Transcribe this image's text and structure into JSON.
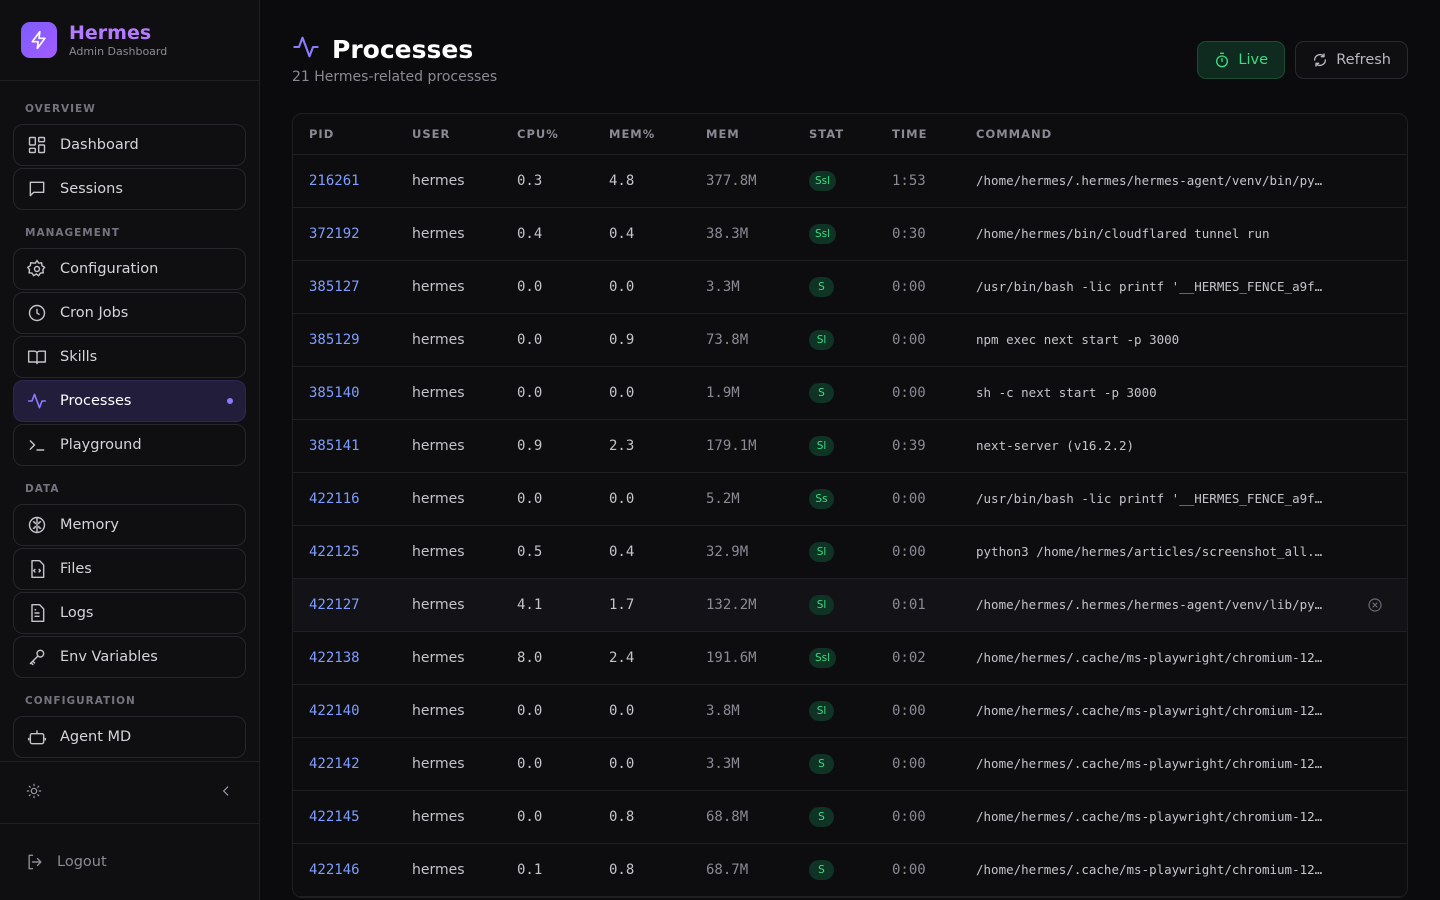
{
  "brand": {
    "name": "Hermes",
    "subtitle": "Admin Dashboard"
  },
  "sidebar": {
    "sections": [
      {
        "label": "OVERVIEW",
        "items": [
          {
            "label": "Dashboard",
            "icon": "grid-icon"
          },
          {
            "label": "Sessions",
            "icon": "chat-icon"
          }
        ]
      },
      {
        "label": "MANAGEMENT",
        "items": [
          {
            "label": "Configuration",
            "icon": "gear-icon"
          },
          {
            "label": "Cron Jobs",
            "icon": "clock-icon"
          },
          {
            "label": "Skills",
            "icon": "book-icon"
          },
          {
            "label": "Processes",
            "icon": "activity-icon",
            "active": true
          },
          {
            "label": "Playground",
            "icon": "terminal-icon"
          }
        ]
      },
      {
        "label": "DATA",
        "items": [
          {
            "label": "Memory",
            "icon": "brain-icon"
          },
          {
            "label": "Files",
            "icon": "file-code-icon"
          },
          {
            "label": "Logs",
            "icon": "file-text-icon"
          },
          {
            "label": "Env Variables",
            "icon": "key-icon"
          }
        ]
      },
      {
        "label": "CONFIGURATION",
        "items": [
          {
            "label": "Agent MD",
            "icon": "bot-icon"
          }
        ]
      }
    ],
    "logout_label": "Logout"
  },
  "header": {
    "title": "Processes",
    "subtitle": "21 Hermes-related processes",
    "live_label": "Live",
    "refresh_label": "Refresh"
  },
  "table": {
    "columns": [
      "PID",
      "USER",
      "CPU%",
      "MEM%",
      "MEM",
      "STAT",
      "TIME",
      "COMMAND"
    ],
    "rows": [
      {
        "pid": "216261",
        "user": "hermes",
        "cpu": "0.3",
        "mem_pct": "4.8",
        "mem": "377.8M",
        "stat": "Ssl",
        "time": "1:53",
        "command": "/home/hermes/.hermes/hermes-agent/venv/bin/pyt…"
      },
      {
        "pid": "372192",
        "user": "hermes",
        "cpu": "0.4",
        "mem_pct": "0.4",
        "mem": "38.3M",
        "stat": "Ssl",
        "time": "0:30",
        "command": "/home/hermes/bin/cloudflared tunnel run"
      },
      {
        "pid": "385127",
        "user": "hermes",
        "cpu": "0.0",
        "mem_pct": "0.0",
        "mem": "3.3M",
        "stat": "S",
        "time": "0:00",
        "command": "/usr/bin/bash -lic printf '__HERMES_FENCE_a9f7…"
      },
      {
        "pid": "385129",
        "user": "hermes",
        "cpu": "0.0",
        "mem_pct": "0.9",
        "mem": "73.8M",
        "stat": "Sl",
        "time": "0:00",
        "command": "npm exec next start -p 3000"
      },
      {
        "pid": "385140",
        "user": "hermes",
        "cpu": "0.0",
        "mem_pct": "0.0",
        "mem": "1.9M",
        "stat": "S",
        "time": "0:00",
        "command": "sh -c next start -p 3000"
      },
      {
        "pid": "385141",
        "user": "hermes",
        "cpu": "0.9",
        "mem_pct": "2.3",
        "mem": "179.1M",
        "stat": "Sl",
        "time": "0:39",
        "command": "next-server (v16.2.2)"
      },
      {
        "pid": "422116",
        "user": "hermes",
        "cpu": "0.0",
        "mem_pct": "0.0",
        "mem": "5.2M",
        "stat": "Ss",
        "time": "0:00",
        "command": "/usr/bin/bash -lic printf '__HERMES_FENCE_a9f7…"
      },
      {
        "pid": "422125",
        "user": "hermes",
        "cpu": "0.5",
        "mem_pct": "0.4",
        "mem": "32.9M",
        "stat": "Sl",
        "time": "0:00",
        "command": "python3 /home/hermes/articles/screenshot_all.py"
      },
      {
        "pid": "422127",
        "user": "hermes",
        "cpu": "4.1",
        "mem_pct": "1.7",
        "mem": "132.2M",
        "stat": "Sl",
        "time": "0:01",
        "command": "/home/hermes/.hermes/hermes-agent/venv/lib/pyt…",
        "hover": true
      },
      {
        "pid": "422138",
        "user": "hermes",
        "cpu": "8.0",
        "mem_pct": "2.4",
        "mem": "191.6M",
        "stat": "Ssl",
        "time": "0:02",
        "command": "/home/hermes/.cache/ms-playwright/chromium-121…"
      },
      {
        "pid": "422140",
        "user": "hermes",
        "cpu": "0.0",
        "mem_pct": "0.0",
        "mem": "3.8M",
        "stat": "Sl",
        "time": "0:00",
        "command": "/home/hermes/.cache/ms-playwright/chromium-121…"
      },
      {
        "pid": "422142",
        "user": "hermes",
        "cpu": "0.0",
        "mem_pct": "0.0",
        "mem": "3.3M",
        "stat": "S",
        "time": "0:00",
        "command": "/home/hermes/.cache/ms-playwright/chromium-121…"
      },
      {
        "pid": "422145",
        "user": "hermes",
        "cpu": "0.0",
        "mem_pct": "0.8",
        "mem": "68.8M",
        "stat": "S",
        "time": "0:00",
        "command": "/home/hermes/.cache/ms-playwright/chromium-121…"
      },
      {
        "pid": "422146",
        "user": "hermes",
        "cpu": "0.1",
        "mem_pct": "0.8",
        "mem": "68.7M",
        "stat": "S",
        "time": "0:00",
        "command": "/home/hermes/.cache/ms-playwright/chromium-121…"
      }
    ]
  }
}
